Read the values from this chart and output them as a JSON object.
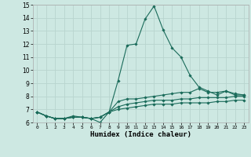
{
  "xlabel": "Humidex (Indice chaleur)",
  "xlim": [
    -0.5,
    23.5
  ],
  "ylim": [
    6,
    15
  ],
  "yticks": [
    6,
    7,
    8,
    9,
    10,
    11,
    12,
    13,
    14,
    15
  ],
  "xticks": [
    0,
    1,
    2,
    3,
    4,
    5,
    6,
    7,
    8,
    9,
    10,
    11,
    12,
    13,
    14,
    15,
    16,
    17,
    18,
    19,
    20,
    21,
    22,
    23
  ],
  "background_color": "#cde8e2",
  "grid_color": "#b8d4ce",
  "line_color": "#1a6b5a",
  "lines": [
    [
      6.8,
      6.5,
      6.3,
      6.3,
      6.5,
      6.4,
      6.3,
      6.0,
      6.8,
      9.2,
      11.9,
      12.0,
      13.9,
      14.9,
      13.1,
      11.7,
      11.0,
      9.6,
      8.7,
      8.4,
      8.1,
      8.4,
      8.1,
      8.1
    ],
    [
      6.8,
      6.5,
      6.3,
      6.3,
      6.4,
      6.4,
      6.3,
      6.4,
      6.8,
      7.6,
      7.8,
      7.8,
      7.9,
      8.0,
      8.1,
      8.2,
      8.3,
      8.3,
      8.6,
      8.3,
      8.3,
      8.4,
      8.2,
      8.1
    ],
    [
      6.8,
      6.5,
      6.3,
      6.3,
      6.4,
      6.4,
      6.3,
      6.4,
      6.8,
      7.2,
      7.4,
      7.5,
      7.6,
      7.7,
      7.7,
      7.7,
      7.8,
      7.8,
      7.9,
      7.9,
      7.9,
      7.9,
      8.0,
      8.0
    ],
    [
      6.8,
      6.5,
      6.3,
      6.3,
      6.4,
      6.4,
      6.3,
      6.4,
      6.8,
      7.0,
      7.1,
      7.2,
      7.3,
      7.4,
      7.4,
      7.4,
      7.5,
      7.5,
      7.5,
      7.5,
      7.6,
      7.6,
      7.7,
      7.7
    ]
  ]
}
